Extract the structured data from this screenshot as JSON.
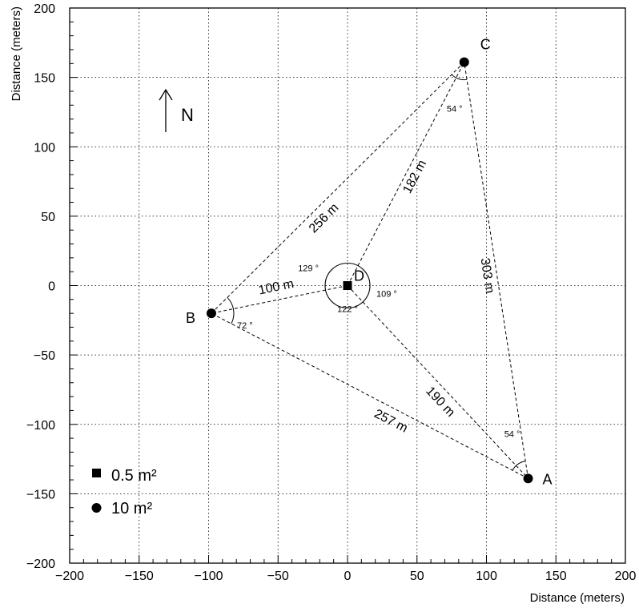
{
  "chart_data": {
    "type": "scatter",
    "xlabel": "Distance (meters)",
    "ylabel": "Distance (meters)",
    "xlim": [
      -200,
      200
    ],
    "ylim": [
      -200,
      200
    ],
    "x_ticks": [
      -200,
      -150,
      -100,
      -50,
      0,
      50,
      100,
      150,
      200
    ],
    "y_ticks": [
      -200,
      -150,
      -100,
      -50,
      0,
      50,
      100,
      150,
      200
    ],
    "x_tick_labels": [
      "−200",
      "−150",
      "−100",
      "−50",
      "0",
      "50",
      "100",
      "150",
      "200"
    ],
    "y_tick_labels": [
      "−200",
      "−150",
      "−100",
      "−50",
      "0",
      "50",
      "100",
      "150",
      "200"
    ],
    "grid": true,
    "north_label": "N",
    "points": [
      {
        "name": "A",
        "x": 130,
        "y": -139,
        "marker": "circle"
      },
      {
        "name": "B",
        "x": -98,
        "y": -20,
        "marker": "circle"
      },
      {
        "name": "C",
        "x": 84,
        "y": 161,
        "marker": "circle"
      },
      {
        "name": "D",
        "x": 0,
        "y": 0,
        "marker": "square"
      }
    ],
    "segments": [
      {
        "from": "A",
        "to": "B",
        "label": "257 m"
      },
      {
        "from": "A",
        "to": "C",
        "label": "303 m"
      },
      {
        "from": "B",
        "to": "C",
        "label": "256 m"
      },
      {
        "from": "D",
        "to": "A",
        "label": "190 m"
      },
      {
        "from": "D",
        "to": "B",
        "label": "100 m"
      },
      {
        "from": "D",
        "to": "C",
        "label": "182 m"
      }
    ],
    "angles": [
      {
        "vertex": "B",
        "label": "72 °"
      },
      {
        "vertex": "C",
        "label": "54 °"
      },
      {
        "vertex": "A",
        "label": "54 °"
      },
      {
        "vertex": "D",
        "label": "129 °"
      },
      {
        "vertex": "D",
        "label": "109 °"
      },
      {
        "vertex": "D",
        "label": "122 °"
      }
    ],
    "legend": [
      {
        "marker": "square",
        "label": "0.5 m²"
      },
      {
        "marker": "circle",
        "label": "10 m²"
      }
    ],
    "legend_position": "bottom-left"
  }
}
